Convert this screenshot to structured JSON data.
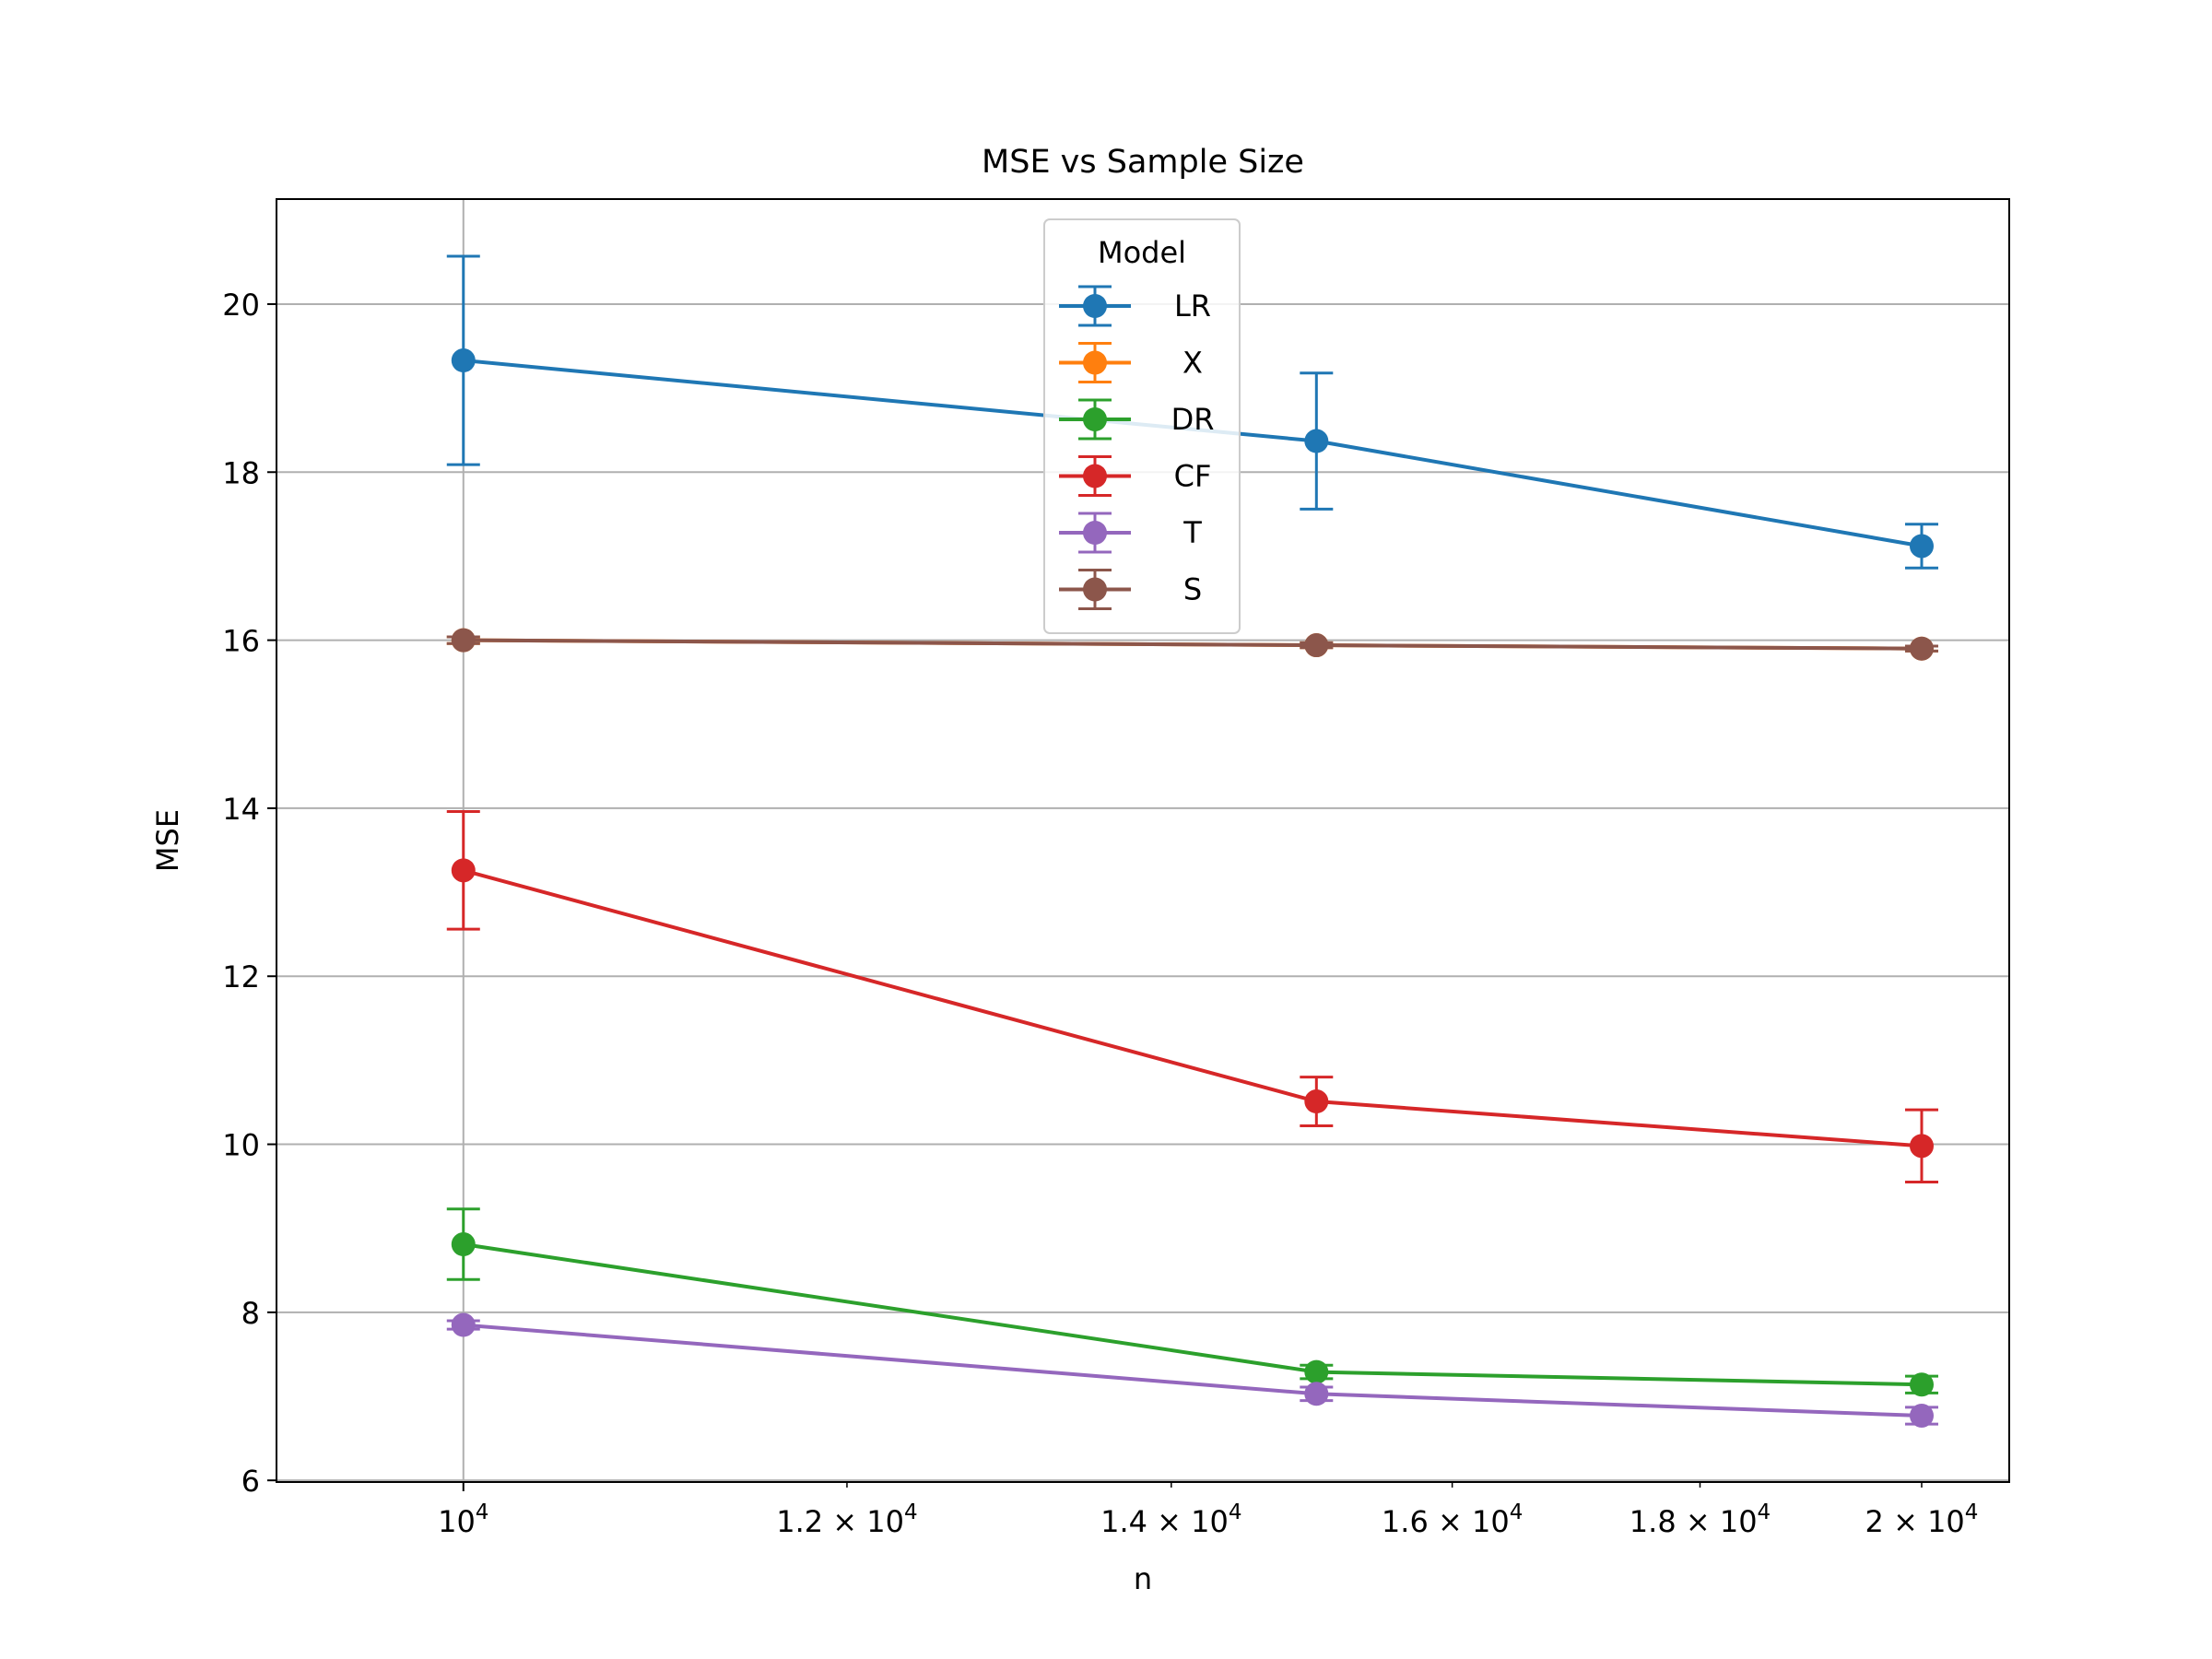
{
  "chart_data": {
    "type": "line",
    "title": "MSE vs Sample Size",
    "xlabel": "n",
    "ylabel": "MSE",
    "x_scale": "log",
    "xlim": [
      9150,
      20850
    ],
    "ylim": [
      5.98,
      21.25
    ],
    "x_ticks": [
      {
        "value": 10000,
        "base": "10",
        "exp": "4"
      },
      {
        "value": 12000,
        "base": "1.2 × 10",
        "exp": "4"
      },
      {
        "value": 14000,
        "base": "1.4 × 10",
        "exp": "4"
      },
      {
        "value": 16000,
        "base": "1.6 × 10",
        "exp": "4"
      },
      {
        "value": 18000,
        "base": "1.8 × 10",
        "exp": "4"
      },
      {
        "value": 20000,
        "base": "2 × 10",
        "exp": "4"
      }
    ],
    "y_ticks": [
      {
        "value": 6,
        "label": "6"
      },
      {
        "value": 8,
        "label": "8"
      },
      {
        "value": 10,
        "label": "10"
      },
      {
        "value": 12,
        "label": "12"
      },
      {
        "value": 14,
        "label": "14"
      },
      {
        "value": 16,
        "label": "16"
      },
      {
        "value": 18,
        "label": "18"
      },
      {
        "value": 20,
        "label": "20"
      }
    ],
    "grid": {
      "x_major_only_at": 10000,
      "y": true
    },
    "legend": {
      "title": "Model",
      "position": "top-center"
    },
    "x": [
      10000,
      15000,
      20000
    ],
    "series": [
      {
        "name": "LR",
        "color": "#1f77b4",
        "values": [
          19.33,
          18.37,
          17.12
        ],
        "err": [
          1.24,
          0.81,
          0.26
        ]
      },
      {
        "name": "X",
        "color": "#ff7f0e",
        "values": [
          16.0,
          15.94,
          15.9
        ],
        "err": [
          0.04,
          0.03,
          0.03
        ]
      },
      {
        "name": "DR",
        "color": "#2ca02c",
        "values": [
          8.81,
          7.29,
          7.14
        ],
        "err": [
          0.42,
          0.08,
          0.1
        ]
      },
      {
        "name": "CF",
        "color": "#d62728",
        "values": [
          13.26,
          10.51,
          9.98
        ],
        "err": [
          0.7,
          0.29,
          0.43
        ]
      },
      {
        "name": "T",
        "color": "#9467bd",
        "values": [
          7.85,
          7.03,
          6.77
        ],
        "err": [
          0.05,
          0.08,
          0.1
        ]
      },
      {
        "name": "S",
        "color": "#8c564b",
        "values": [
          16.0,
          15.94,
          15.9
        ],
        "err": [
          0.04,
          0.03,
          0.03
        ]
      }
    ]
  }
}
